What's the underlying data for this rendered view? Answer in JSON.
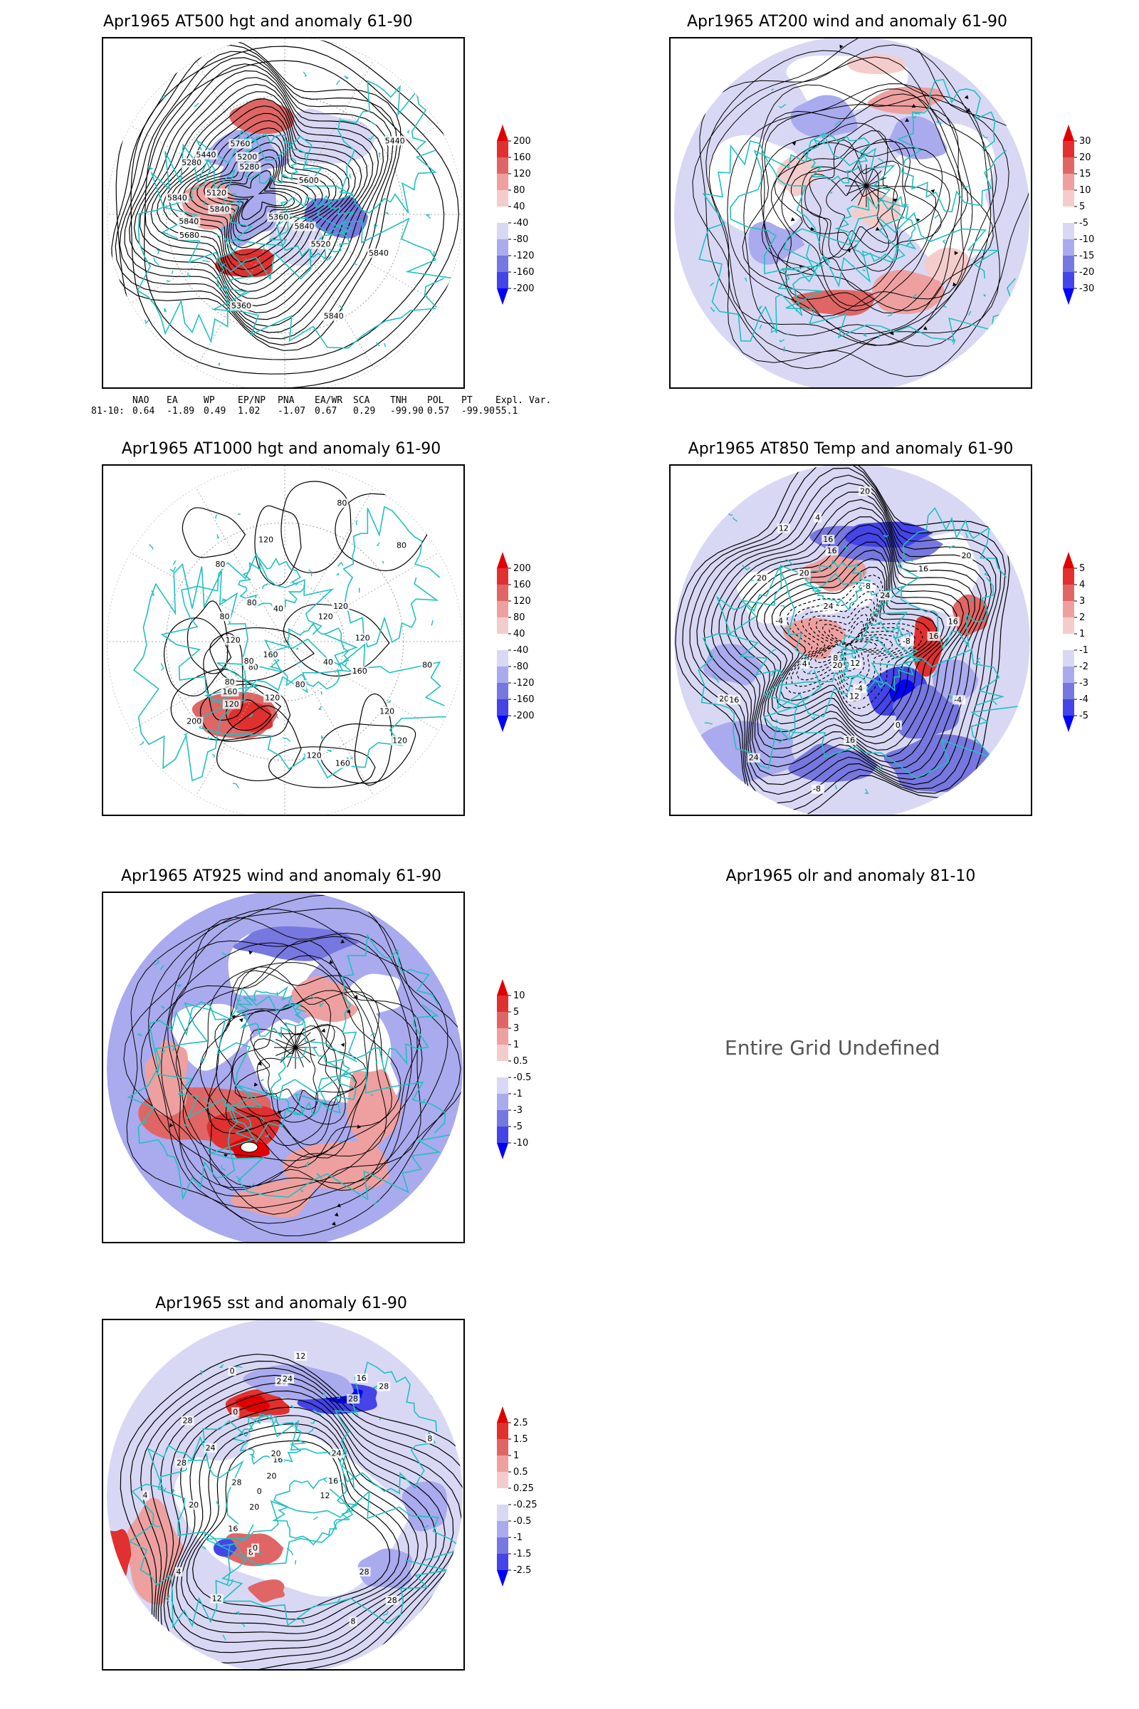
{
  "panels": {
    "p1": {
      "title": "Apr1965 AT500 hgt and anomaly 61-90",
      "contour_labels": [
        "5840",
        "5840",
        "5840",
        "5840",
        "5440",
        "5360",
        "5280",
        "5120",
        "5200",
        "5280",
        "5360",
        "5440",
        "5520",
        "5600",
        "5680",
        "5760",
        "5840",
        "5840"
      ],
      "colorbar": [
        "200",
        "160",
        "120",
        "80",
        "40",
        "-40",
        "-80",
        "-120",
        "-160",
        "-200"
      ]
    },
    "p2": {
      "title": "Apr1965 AT200 wind and anomaly 61-90",
      "colorbar": [
        "30",
        "20",
        "15",
        "10",
        "5",
        "-5",
        "-10",
        "-15",
        "-20",
        "-30"
      ]
    },
    "p3": {
      "title": "Apr1965 AT1000 hgt and anomaly 61-90",
      "contour_labels": [
        "80",
        "160",
        "120",
        "120",
        "80",
        "120",
        "80",
        "120",
        "120",
        "120",
        "80",
        "160",
        "80",
        "80",
        "120",
        "40",
        "160",
        "120",
        "80",
        "120",
        "160",
        "200",
        "80",
        "80",
        "40",
        "120",
        "80"
      ],
      "colorbar": [
        "200",
        "160",
        "120",
        "80",
        "40",
        "-40",
        "-80",
        "-120",
        "-160",
        "-200"
      ]
    },
    "p4": {
      "title": "Apr1965 AT850 Temp and anomaly 61-90",
      "contour_labels": [
        "16",
        "12",
        "8",
        "4",
        "-4",
        "-8",
        "-4",
        "20",
        "16",
        "20",
        "-8",
        "12",
        "-4",
        "16",
        "8",
        "0",
        "24",
        "4",
        "12",
        "16",
        "20",
        "24",
        "20",
        "24",
        "16",
        "16",
        "20",
        "20",
        "16"
      ],
      "colorbar": [
        "5",
        "4",
        "3",
        "2",
        "1",
        "-1",
        "-2",
        "-3",
        "-4",
        "-5"
      ]
    },
    "p5": {
      "title": "Apr1965 AT925 wind and anomaly 61-90",
      "colorbar": [
        "10",
        "5",
        "3",
        "1",
        "0.5",
        "-0.5",
        "-1",
        "-3",
        "-5",
        "-10"
      ]
    },
    "p6": {
      "title": "Apr1965 olr and anomaly 81-10",
      "message": "Entire Grid Undefined"
    },
    "p7": {
      "title": "Apr1965 sst and anomaly 61-90",
      "contour_labels": [
        "28",
        "28",
        "24",
        "28",
        "20",
        "20",
        "16",
        "16",
        "12",
        "12",
        "8",
        "8",
        "4",
        "0",
        "0",
        "0",
        "28",
        "28",
        "20",
        "16",
        "12",
        "8",
        "4",
        "0",
        "24",
        "20",
        "16",
        "28",
        "24",
        "28",
        "28"
      ],
      "colorbar": [
        "2.5",
        "1.5",
        "1",
        "0.5",
        "0.25",
        "-0.25",
        "-0.5",
        "-1",
        "-1.5",
        "-2.5"
      ]
    }
  },
  "indices": {
    "headers": [
      "NAO",
      "EA",
      "WP",
      "EP/NP",
      "PNA",
      "EA/WR",
      "SCA",
      "TNH",
      "POL",
      "PT",
      "Expl. Var."
    ],
    "row_label": "81-10:",
    "values": [
      "0.64",
      "-1.89",
      "0.49",
      "1.02",
      "-1.07",
      "0.67",
      "0.29",
      "-99.90",
      "0.57",
      "-99.90",
      "55.1"
    ]
  },
  "colors": {
    "coast": "#20c0c0",
    "pos": [
      "#f5cccc",
      "#eea0a0",
      "#e06666",
      "#e03030",
      "#e00000"
    ],
    "neg": [
      "#d8d8f5",
      "#aaaaee",
      "#7777e0",
      "#4444e8",
      "#0000ff"
    ]
  }
}
